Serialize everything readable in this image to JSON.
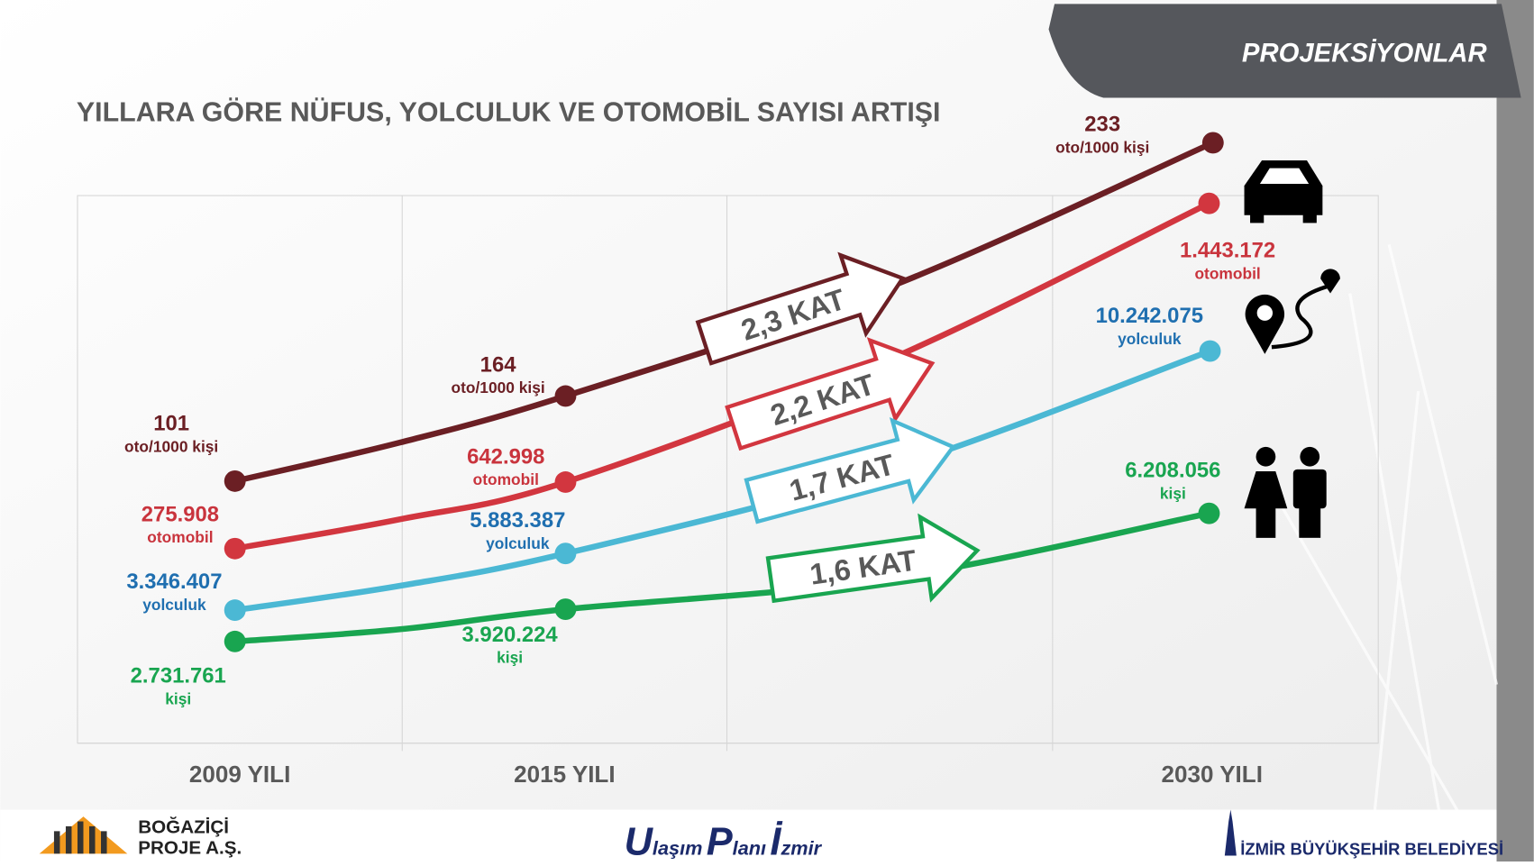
{
  "header": {
    "tab": "PROJEKSİYONLAR",
    "title": "YILLARA GÖRE NÜFUS, YOLCULUK VE OTOMOBİL SAYISI ARTIŞI"
  },
  "x_labels": [
    "2009 YILI",
    "2015 YILI",
    "2030 YILI"
  ],
  "series": [
    {
      "color": "#6b1f24",
      "text_color": "#6b1f24",
      "ratio": "2,3 KAT",
      "labels": [
        {
          "value": "101",
          "unit": "oto/1000 kişi"
        },
        {
          "value": "164",
          "unit": "oto/1000 kişi"
        },
        {
          "value": "233",
          "unit": "oto/1000 kişi"
        }
      ]
    },
    {
      "color": "#d2363f",
      "text_color": "#c9343d",
      "ratio": "2,2 KAT",
      "labels": [
        {
          "value": "275.908",
          "unit": "otomobil"
        },
        {
          "value": "642.998",
          "unit": "otomobil"
        },
        {
          "value": "1.443.172",
          "unit": "otomobil"
        }
      ]
    },
    {
      "color": "#4bb8d4",
      "text_color": "#1f6fb0",
      "ratio": "1,7 KAT",
      "labels": [
        {
          "value": "3.346.407",
          "unit": "yolculuk"
        },
        {
          "value": "5.883.387",
          "unit": "yolculuk"
        },
        {
          "value": "10.242.075",
          "unit": "yolculuk"
        }
      ]
    },
    {
      "color": "#19a550",
      "text_color": "#19a550",
      "ratio": "1,6 KAT",
      "labels": [
        {
          "value": "2.731.761",
          "unit": "kişi"
        },
        {
          "value": "3.920.224",
          "unit": "kişi"
        },
        {
          "value": "6.208.056",
          "unit": "kişi"
        }
      ]
    }
  ],
  "footer": {
    "left": [
      "BOĞAZİÇİ",
      "PROJE A.Ş."
    ],
    "center": [
      "U",
      "laşım",
      "P",
      "lanı",
      "İ",
      "zmir"
    ],
    "right": "İZMİR BÜYÜKŞEHİR BELEDİYESİ"
  }
}
